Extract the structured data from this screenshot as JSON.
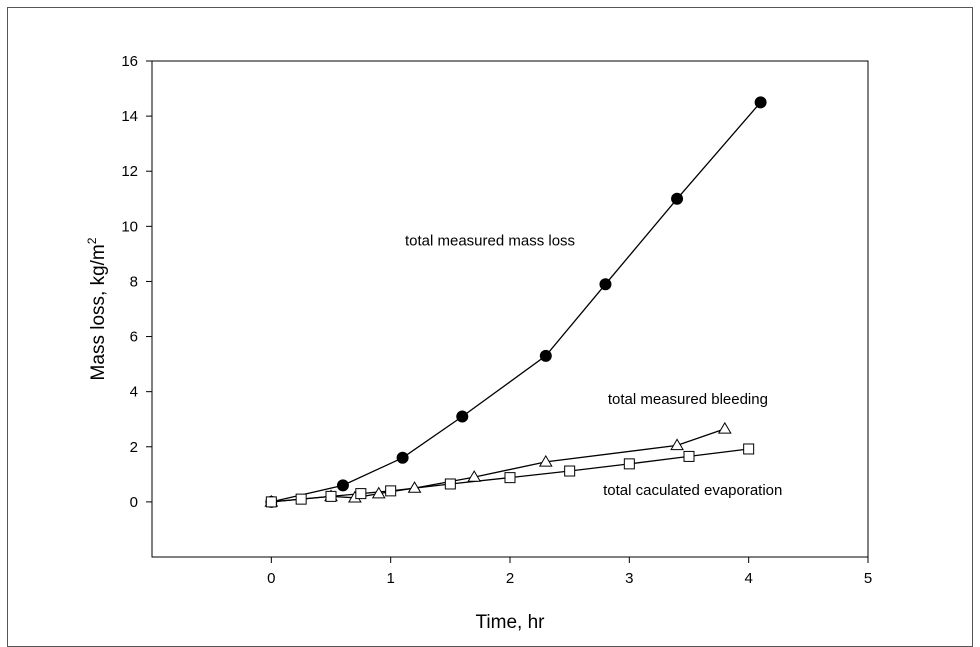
{
  "chart_data": {
    "type": "line",
    "title": "",
    "xlabel": "Time, hr",
    "ylabel_main": "Mass loss, kg/m",
    "ylabel_sup": "2",
    "xlim": [
      -1,
      5
    ],
    "ylim": [
      -2,
      16
    ],
    "x_ticks": [
      0,
      1,
      2,
      3,
      4,
      5
    ],
    "y_ticks": [
      0,
      2,
      4,
      6,
      8,
      10,
      12,
      14,
      16
    ],
    "grid": false,
    "legend": "none",
    "series": [
      {
        "marker": "filled-circle",
        "color": "#000000",
        "x": [
          0,
          0.6,
          1.1,
          1.6,
          2.3,
          2.8,
          3.4,
          4.1
        ],
        "y": [
          0,
          0.6,
          1.6,
          3.1,
          5.3,
          7.9,
          11.0,
          14.5
        ]
      },
      {
        "marker": "open-triangle",
        "color": "#000000",
        "x": [
          0,
          0.5,
          0.7,
          0.9,
          1.2,
          1.7,
          2.3,
          3.4,
          3.8
        ],
        "y": [
          0,
          0.2,
          0.15,
          0.3,
          0.5,
          0.9,
          1.45,
          2.05,
          2.65
        ]
      },
      {
        "marker": "open-square",
        "color": "#000000",
        "x": [
          0,
          0.25,
          0.5,
          0.75,
          1.0,
          1.5,
          2.0,
          2.5,
          3.0,
          3.5,
          4.0
        ],
        "y": [
          0,
          0.1,
          0.2,
          0.3,
          0.4,
          0.65,
          0.88,
          1.12,
          1.38,
          1.65,
          1.92
        ]
      }
    ],
    "annotations": [
      {
        "text": "total measured mass loss",
        "x": 1.12,
        "y": 9.3
      },
      {
        "text": "total measured bleeding",
        "x": 2.82,
        "y": 3.55
      },
      {
        "text": "total caculated evaporation",
        "x": 2.78,
        "y": 0.25
      }
    ]
  }
}
